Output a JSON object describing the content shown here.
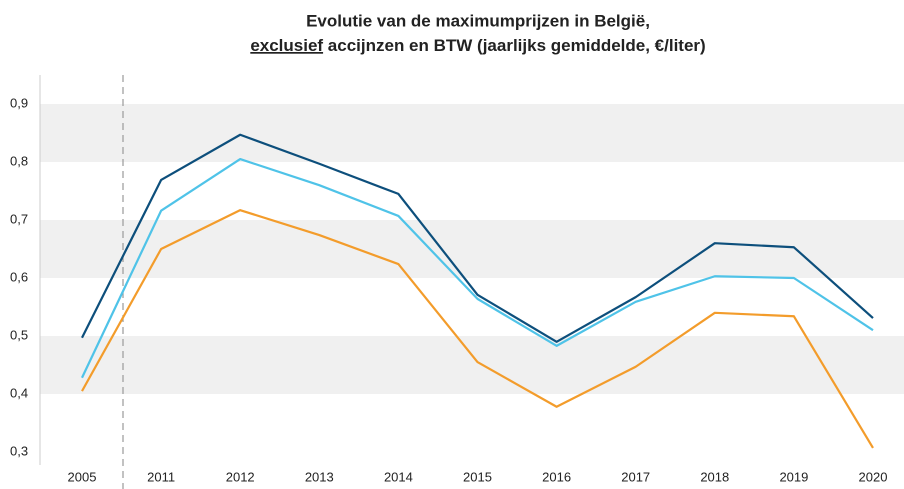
{
  "chart_data": {
    "type": "line",
    "title": "Evolutie van de maximumprijzen in België,",
    "title_emphasis": "exclusief",
    "title_rest": " accijnzen en BTW (jaarlijks gemiddelde, €/liter)",
    "categories": [
      "2005",
      "2011",
      "2012",
      "2013",
      "2014",
      "2015",
      "2016",
      "2017",
      "2018",
      "2019",
      "2020"
    ],
    "series": [
      {
        "color": "#0d4f7c",
        "values": [
          0.497,
          0.769,
          0.847,
          0.797,
          0.745,
          0.571,
          0.49,
          0.567,
          0.66,
          0.653,
          0.531
        ]
      },
      {
        "color": "#4fc3e8",
        "values": [
          0.428,
          0.716,
          0.805,
          0.76,
          0.707,
          0.564,
          0.483,
          0.559,
          0.603,
          0.6,
          0.51
        ]
      },
      {
        "color": "#f39c2b",
        "values": [
          0.405,
          0.65,
          0.717,
          0.674,
          0.624,
          0.455,
          0.378,
          0.447,
          0.54,
          0.534,
          0.307
        ]
      }
    ],
    "ylim": [
      0.3,
      0.95
    ],
    "yticks": [
      {
        "value": 0.3,
        "label": "0,3"
      },
      {
        "value": 0.4,
        "label": "0,4"
      },
      {
        "value": 0.5,
        "label": "0,5"
      },
      {
        "value": 0.6,
        "label": "0,6"
      },
      {
        "value": 0.7,
        "label": "0,7"
      },
      {
        "value": 0.8,
        "label": "0,8"
      },
      {
        "value": 0.9,
        "label": "0,9"
      }
    ],
    "grid": "bands"
  }
}
